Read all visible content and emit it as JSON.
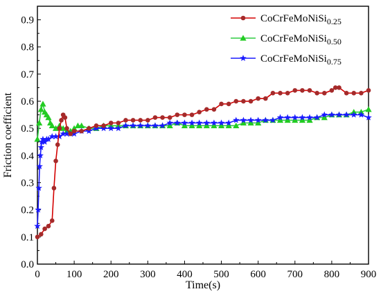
{
  "chart_data": {
    "type": "line",
    "title": "",
    "xlabel": "Time(s)",
    "ylabel": "Friction coefficient",
    "xlim": [
      0,
      900
    ],
    "ylim": [
      0.0,
      0.95
    ],
    "xticks": [
      "0",
      "100",
      "200",
      "300",
      "400",
      "500",
      "600",
      "700",
      "800",
      "900"
    ],
    "yticks": [
      "0.0",
      "0.1",
      "0.2",
      "0.3",
      "0.4",
      "0.5",
      "0.6",
      "0.7",
      "0.8",
      "0.9"
    ],
    "legend_position": "top-right",
    "grid": false,
    "series": [
      {
        "name": "CoCrFeMoNiSi",
        "name_sub": "0.25",
        "color": "#d40000",
        "marker_color": "#a52a2a",
        "marker": "circle",
        "points": [
          [
            0,
            0.1
          ],
          [
            10,
            0.11
          ],
          [
            20,
            0.13
          ],
          [
            30,
            0.14
          ],
          [
            40,
            0.16
          ],
          [
            45,
            0.28
          ],
          [
            50,
            0.38
          ],
          [
            55,
            0.44
          ],
          [
            60,
            0.5
          ],
          [
            65,
            0.53
          ],
          [
            70,
            0.55
          ],
          [
            75,
            0.54
          ],
          [
            80,
            0.5
          ],
          [
            90,
            0.48
          ],
          [
            100,
            0.49
          ],
          [
            120,
            0.49
          ],
          [
            140,
            0.5
          ],
          [
            160,
            0.51
          ],
          [
            180,
            0.51
          ],
          [
            200,
            0.52
          ],
          [
            220,
            0.52
          ],
          [
            240,
            0.53
          ],
          [
            260,
            0.53
          ],
          [
            280,
            0.53
          ],
          [
            300,
            0.53
          ],
          [
            320,
            0.54
          ],
          [
            340,
            0.54
          ],
          [
            360,
            0.54
          ],
          [
            380,
            0.55
          ],
          [
            400,
            0.55
          ],
          [
            420,
            0.55
          ],
          [
            440,
            0.56
          ],
          [
            460,
            0.57
          ],
          [
            480,
            0.57
          ],
          [
            500,
            0.59
          ],
          [
            520,
            0.59
          ],
          [
            540,
            0.6
          ],
          [
            560,
            0.6
          ],
          [
            580,
            0.6
          ],
          [
            600,
            0.61
          ],
          [
            620,
            0.61
          ],
          [
            640,
            0.63
          ],
          [
            660,
            0.63
          ],
          [
            680,
            0.63
          ],
          [
            700,
            0.64
          ],
          [
            720,
            0.64
          ],
          [
            740,
            0.64
          ],
          [
            760,
            0.63
          ],
          [
            780,
            0.63
          ],
          [
            800,
            0.64
          ],
          [
            810,
            0.65
          ],
          [
            820,
            0.65
          ],
          [
            840,
            0.63
          ],
          [
            860,
            0.63
          ],
          [
            880,
            0.63
          ],
          [
            900,
            0.64
          ]
        ]
      },
      {
        "name": "CoCrFeMoNiSi",
        "name_sub": "0.50",
        "color": "#2ecc40",
        "marker_color": "#22cc22",
        "marker": "triangle",
        "points": [
          [
            0,
            0.46
          ],
          [
            5,
            0.52
          ],
          [
            10,
            0.57
          ],
          [
            15,
            0.59
          ],
          [
            20,
            0.56
          ],
          [
            25,
            0.55
          ],
          [
            30,
            0.54
          ],
          [
            35,
            0.52
          ],
          [
            40,
            0.51
          ],
          [
            50,
            0.5
          ],
          [
            60,
            0.51
          ],
          [
            70,
            0.5
          ],
          [
            80,
            0.49
          ],
          [
            90,
            0.49
          ],
          [
            100,
            0.5
          ],
          [
            110,
            0.51
          ],
          [
            120,
            0.51
          ],
          [
            140,
            0.5
          ],
          [
            160,
            0.5
          ],
          [
            180,
            0.51
          ],
          [
            200,
            0.51
          ],
          [
            220,
            0.51
          ],
          [
            240,
            0.51
          ],
          [
            260,
            0.51
          ],
          [
            280,
            0.51
          ],
          [
            300,
            0.51
          ],
          [
            320,
            0.51
          ],
          [
            340,
            0.51
          ],
          [
            360,
            0.51
          ],
          [
            380,
            0.52
          ],
          [
            400,
            0.51
          ],
          [
            420,
            0.51
          ],
          [
            440,
            0.51
          ],
          [
            460,
            0.51
          ],
          [
            480,
            0.51
          ],
          [
            500,
            0.51
          ],
          [
            520,
            0.51
          ],
          [
            540,
            0.51
          ],
          [
            560,
            0.52
          ],
          [
            580,
            0.52
          ],
          [
            600,
            0.52
          ],
          [
            620,
            0.53
          ],
          [
            640,
            0.53
          ],
          [
            660,
            0.53
          ],
          [
            680,
            0.53
          ],
          [
            700,
            0.53
          ],
          [
            720,
            0.53
          ],
          [
            740,
            0.53
          ],
          [
            760,
            0.54
          ],
          [
            780,
            0.54
          ],
          [
            800,
            0.55
          ],
          [
            820,
            0.55
          ],
          [
            840,
            0.55
          ],
          [
            860,
            0.56
          ],
          [
            880,
            0.56
          ],
          [
            900,
            0.57
          ]
        ]
      },
      {
        "name": "CoCrFeMoNiSi",
        "name_sub": "0.75",
        "color": "#1a1aff",
        "marker_color": "#1a1aff",
        "marker": "star",
        "points": [
          [
            0,
            0.14
          ],
          [
            2,
            0.2
          ],
          [
            4,
            0.28
          ],
          [
            6,
            0.36
          ],
          [
            8,
            0.4
          ],
          [
            10,
            0.43
          ],
          [
            12,
            0.45
          ],
          [
            15,
            0.46
          ],
          [
            20,
            0.45
          ],
          [
            25,
            0.46
          ],
          [
            30,
            0.46
          ],
          [
            40,
            0.47
          ],
          [
            50,
            0.47
          ],
          [
            60,
            0.47
          ],
          [
            70,
            0.48
          ],
          [
            80,
            0.48
          ],
          [
            90,
            0.48
          ],
          [
            100,
            0.48
          ],
          [
            120,
            0.49
          ],
          [
            140,
            0.49
          ],
          [
            160,
            0.5
          ],
          [
            180,
            0.5
          ],
          [
            200,
            0.5
          ],
          [
            220,
            0.5
          ],
          [
            240,
            0.51
          ],
          [
            260,
            0.51
          ],
          [
            280,
            0.51
          ],
          [
            300,
            0.51
          ],
          [
            320,
            0.51
          ],
          [
            340,
            0.51
          ],
          [
            360,
            0.52
          ],
          [
            380,
            0.52
          ],
          [
            400,
            0.52
          ],
          [
            420,
            0.52
          ],
          [
            440,
            0.52
          ],
          [
            460,
            0.52
          ],
          [
            480,
            0.52
          ],
          [
            500,
            0.52
          ],
          [
            520,
            0.52
          ],
          [
            540,
            0.53
          ],
          [
            560,
            0.53
          ],
          [
            580,
            0.53
          ],
          [
            600,
            0.53
          ],
          [
            620,
            0.53
          ],
          [
            640,
            0.53
          ],
          [
            660,
            0.54
          ],
          [
            680,
            0.54
          ],
          [
            700,
            0.54
          ],
          [
            720,
            0.54
          ],
          [
            740,
            0.54
          ],
          [
            760,
            0.54
          ],
          [
            780,
            0.55
          ],
          [
            800,
            0.55
          ],
          [
            820,
            0.55
          ],
          [
            840,
            0.55
          ],
          [
            860,
            0.55
          ],
          [
            880,
            0.55
          ],
          [
            900,
            0.54
          ]
        ]
      }
    ]
  }
}
